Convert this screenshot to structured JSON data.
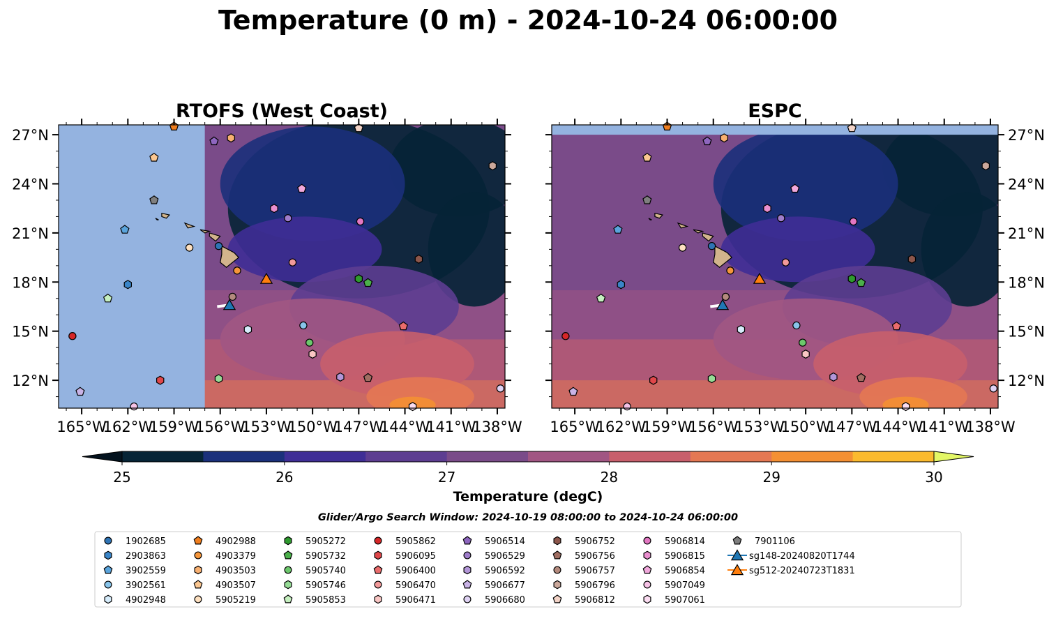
{
  "figure": {
    "suptitle": "Temperature (0 m) - 2024-10-24 06:00:00",
    "search_window": "Glider/Argo Search Window: 2024-10-19 08:00:00 to 2024-10-24 06:00:00"
  },
  "panels": [
    {
      "title": "RTOFS (West Coast)",
      "model_extent": {
        "west": -157.0
      }
    },
    {
      "title": "ESPC",
      "model_extent": {
        "north": 27.0
      }
    }
  ],
  "map": {
    "lon_range": [
      -166.5,
      -137.5
    ],
    "lat_range": [
      10.3,
      27.6
    ],
    "lon_ticks": [
      {
        "lon": -165,
        "label": "165°W"
      },
      {
        "lon": -162,
        "label": "162°W"
      },
      {
        "lon": -159,
        "label": "159°W"
      },
      {
        "lon": -156,
        "label": "156°W"
      },
      {
        "lon": -153,
        "label": "153°W"
      },
      {
        "lon": -150,
        "label": "150°W"
      },
      {
        "lon": -147,
        "label": "147°W"
      },
      {
        "lon": -144,
        "label": "144°W"
      },
      {
        "lon": -141,
        "label": "141°W"
      },
      {
        "lon": -138,
        "label": "138°W"
      }
    ],
    "lat_ticks": [
      {
        "lat": 27,
        "label": "27°N"
      },
      {
        "lat": 24,
        "label": "24°N"
      },
      {
        "lat": 21,
        "label": "21°N"
      },
      {
        "lat": 18,
        "label": "18°N"
      },
      {
        "lat": 15,
        "label": "15°N"
      },
      {
        "lat": 12,
        "label": "12°N"
      }
    ],
    "no_data_color": "#94b3e0",
    "land_color": "#d2b48c"
  },
  "colorbar": {
    "label": "Temperature (degC)",
    "min": 25,
    "max": 30,
    "step": 0.5,
    "ticks": [
      25,
      26,
      27,
      28,
      29,
      30
    ],
    "tick_labels": [
      "25",
      "26",
      "27",
      "28",
      "29",
      "30"
    ],
    "under_color": "#03121e",
    "over_color": "#e3f766",
    "colors": [
      "#062436",
      "#1b307b",
      "#3f2e96",
      "#5d3d91",
      "#7a4b89",
      "#a15683",
      "#c85f6c",
      "#e47853",
      "#f49033",
      "#fbba2e"
    ]
  },
  "legend": {
    "entries": [
      {
        "label": "1902685",
        "marker": "circle",
        "color": "#2f74b5"
      },
      {
        "label": "2903863",
        "marker": "hexagon",
        "color": "#3a85c8"
      },
      {
        "label": "3902559",
        "marker": "pentagon",
        "color": "#5aa4dc"
      },
      {
        "label": "3902561",
        "marker": "circle",
        "color": "#88c4ea"
      },
      {
        "label": "4902948",
        "marker": "hexagon",
        "color": "#d6ecfb"
      },
      {
        "label": "4902988",
        "marker": "pentagon",
        "color": "#f07e1e"
      },
      {
        "label": "4903379",
        "marker": "circle",
        "color": "#f6963a"
      },
      {
        "label": "4903503",
        "marker": "hexagon",
        "color": "#f8b071"
      },
      {
        "label": "4903507",
        "marker": "pentagon",
        "color": "#fbc791"
      },
      {
        "label": "5905219",
        "marker": "circle",
        "color": "#fde0c0"
      },
      {
        "label": "5905272",
        "marker": "hexagon",
        "color": "#2f9a2f"
      },
      {
        "label": "5905732",
        "marker": "pentagon",
        "color": "#4bb04b"
      },
      {
        "label": "5905740",
        "marker": "circle",
        "color": "#6cc76c"
      },
      {
        "label": "5905746",
        "marker": "hexagon",
        "color": "#96dc96"
      },
      {
        "label": "5905853",
        "marker": "pentagon",
        "color": "#c6f0c0"
      },
      {
        "label": "5905862",
        "marker": "circle",
        "color": "#d62728"
      },
      {
        "label": "5906095",
        "marker": "hexagon",
        "color": "#e0474a"
      },
      {
        "label": "5906400",
        "marker": "pentagon",
        "color": "#ea6c6c"
      },
      {
        "label": "5906470",
        "marker": "circle",
        "color": "#f29a9a"
      },
      {
        "label": "5906471",
        "marker": "hexagon",
        "color": "#f9c6c4"
      },
      {
        "label": "5906514",
        "marker": "pentagon",
        "color": "#8e66bf"
      },
      {
        "label": "5906529",
        "marker": "circle",
        "color": "#9f7dcb"
      },
      {
        "label": "5906592",
        "marker": "hexagon",
        "color": "#b396d8"
      },
      {
        "label": "5906677",
        "marker": "pentagon",
        "color": "#c9b3e6"
      },
      {
        "label": "5906680",
        "marker": "circle",
        "color": "#dfd2f3"
      },
      {
        "label": "5906752",
        "marker": "hexagon",
        "color": "#8c564b"
      },
      {
        "label": "5906756",
        "marker": "pentagon",
        "color": "#a06e62"
      },
      {
        "label": "5906757",
        "marker": "circle",
        "color": "#b48a7d"
      },
      {
        "label": "5906796",
        "marker": "hexagon",
        "color": "#cba89b"
      },
      {
        "label": "5906812",
        "marker": "pentagon",
        "color": "#f3d4c8"
      },
      {
        "label": "5906814",
        "marker": "circle",
        "color": "#e377c2"
      },
      {
        "label": "5906815",
        "marker": "hexagon",
        "color": "#ea8fcf"
      },
      {
        "label": "5906854",
        "marker": "pentagon",
        "color": "#f1a8dc"
      },
      {
        "label": "5907049",
        "marker": "circle",
        "color": "#f6c2e6"
      },
      {
        "label": "5907061",
        "marker": "hexagon",
        "color": "#fbdcf1"
      },
      {
        "label": "7901106",
        "marker": "pentagon",
        "color": "#7f7f7f"
      },
      {
        "label": "sg148-20240820T1744",
        "marker": "triangle",
        "color": "#1f77b4",
        "line": true
      },
      {
        "label": "sg512-20240723T1831",
        "marker": "triangle",
        "color": "#ff7f0e",
        "line": true
      }
    ]
  },
  "islands": [
    [
      [
        -155.9,
        20.2
      ],
      [
        -155.1,
        19.8
      ],
      [
        -154.8,
        19.5
      ],
      [
        -155.6,
        18.9
      ],
      [
        -156.0,
        19.2
      ],
      [
        -155.9,
        19.7
      ]
    ],
    [
      [
        -156.7,
        21.0
      ],
      [
        -156.0,
        20.8
      ],
      [
        -156.3,
        20.5
      ],
      [
        -156.7,
        20.8
      ]
    ],
    [
      [
        -157.3,
        21.2
      ],
      [
        -156.7,
        21.1
      ],
      [
        -157.0,
        21.0
      ]
    ],
    [
      [
        -158.3,
        21.6
      ],
      [
        -157.7,
        21.4
      ],
      [
        -158.1,
        21.3
      ]
    ],
    [
      [
        -159.8,
        22.2
      ],
      [
        -159.3,
        22.1
      ],
      [
        -159.5,
        21.9
      ],
      [
        -159.8,
        22.0
      ]
    ],
    [
      [
        -160.2,
        21.9
      ],
      [
        -160.0,
        21.8
      ],
      [
        -160.1,
        21.8
      ]
    ]
  ],
  "observations": [
    {
      "id": "1902685",
      "lon": -156.1,
      "lat": 20.2
    },
    {
      "id": "2903863",
      "lon": -162.0,
      "lat": 17.85
    },
    {
      "id": "3902559",
      "lon": -162.2,
      "lat": 21.2
    },
    {
      "id": "3902561",
      "lon": -150.6,
      "lat": 15.35
    },
    {
      "id": "4902948",
      "lon": -154.2,
      "lat": 15.1
    },
    {
      "id": "4902988",
      "lon": -159.0,
      "lat": 27.5
    },
    {
      "id": "4903379",
      "lon": -154.9,
      "lat": 18.7
    },
    {
      "id": "4903503",
      "lon": -155.3,
      "lat": 26.8
    },
    {
      "id": "4903507",
      "lon": -160.3,
      "lat": 25.6
    },
    {
      "id": "5905219",
      "lon": -158.0,
      "lat": 20.1
    },
    {
      "id": "5905272",
      "lon": -147.0,
      "lat": 18.2
    },
    {
      "id": "5905732",
      "lon": -146.4,
      "lat": 17.95
    },
    {
      "id": "5905740",
      "lon": -150.2,
      "lat": 14.3
    },
    {
      "id": "5905746",
      "lon": -156.1,
      "lat": 12.1
    },
    {
      "id": "5905853",
      "lon": -163.3,
      "lat": 17.0
    },
    {
      "id": "5905862",
      "lon": -165.6,
      "lat": 14.7
    },
    {
      "id": "5906095",
      "lon": -159.9,
      "lat": 12.0
    },
    {
      "id": "5906400",
      "lon": -144.1,
      "lat": 15.3
    },
    {
      "id": "5906470",
      "lon": -151.3,
      "lat": 19.2
    },
    {
      "id": "5906471",
      "lon": -150.0,
      "lat": 13.6
    },
    {
      "id": "5906514",
      "lon": -156.4,
      "lat": 26.6
    },
    {
      "id": "5906529",
      "lon": -151.6,
      "lat": 21.9
    },
    {
      "id": "5906592",
      "lon": -148.2,
      "lat": 12.2
    },
    {
      "id": "5906677",
      "lon": -165.1,
      "lat": 11.3
    },
    {
      "id": "5906680",
      "lon": -137.8,
      "lat": 11.5
    },
    {
      "id": "5906752",
      "lon": -143.1,
      "lat": 19.4
    },
    {
      "id": "5906756",
      "lon": -146.4,
      "lat": 12.15
    },
    {
      "id": "5906757",
      "lon": -155.2,
      "lat": 17.1
    },
    {
      "id": "5906796",
      "lon": -138.3,
      "lat": 25.1
    },
    {
      "id": "5906812",
      "lon": -147.0,
      "lat": 27.4
    },
    {
      "id": "5906814",
      "lon": -146.9,
      "lat": 21.7
    },
    {
      "id": "5906815",
      "lon": -152.5,
      "lat": 22.5
    },
    {
      "id": "5906854",
      "lon": -150.7,
      "lat": 23.7
    },
    {
      "id": "5907049",
      "lon": -161.6,
      "lat": 10.4
    },
    {
      "id": "5907061",
      "lon": -143.5,
      "lat": 10.4
    },
    {
      "id": "7901106",
      "lon": -160.3,
      "lat": 23.0
    },
    {
      "id": "sg148-20240820T1744",
      "lon": -155.4,
      "lat": 16.6
    },
    {
      "id": "sg512-20240723T1831",
      "lon": -153.0,
      "lat": 18.2
    }
  ],
  "glider_tracks": [
    {
      "id": "sg148-20240820T1744",
      "track": [
        [
          -156.2,
          16.5
        ],
        [
          -155.4,
          16.6
        ]
      ]
    }
  ],
  "field_patches": [
    {
      "lon": -147.0,
      "lat": 22.5,
      "rx": 8.5,
      "ry": 5.5,
      "level": 0
    },
    {
      "lon": -140.5,
      "lat": 25.0,
      "rx": 4.5,
      "ry": 3.0,
      "level": -1
    },
    {
      "lon": -139.5,
      "lat": 20.0,
      "rx": 3.0,
      "ry": 3.5,
      "level": 0
    },
    {
      "lon": -150.0,
      "lat": 24.0,
      "rx": 6.0,
      "ry": 3.5,
      "level": 1
    },
    {
      "lon": -150.5,
      "lat": 20.0,
      "rx": 5.0,
      "ry": 2.0,
      "level": 2
    },
    {
      "lon": -146.0,
      "lat": 16.5,
      "rx": 5.5,
      "ry": 2.5,
      "level": 3
    },
    {
      "lon": -150.0,
      "lat": 14.5,
      "rx": 6.0,
      "ry": 2.5,
      "level": 5
    },
    {
      "lon": -144.5,
      "lat": 13.0,
      "rx": 5.0,
      "ry": 2.0,
      "level": 6
    },
    {
      "lon": -143.0,
      "lat": 11.0,
      "rx": 3.5,
      "ry": 1.2,
      "level": 7
    },
    {
      "lon": -143.5,
      "lat": 10.5,
      "rx": 1.5,
      "ry": 0.5,
      "level": 8
    }
  ]
}
